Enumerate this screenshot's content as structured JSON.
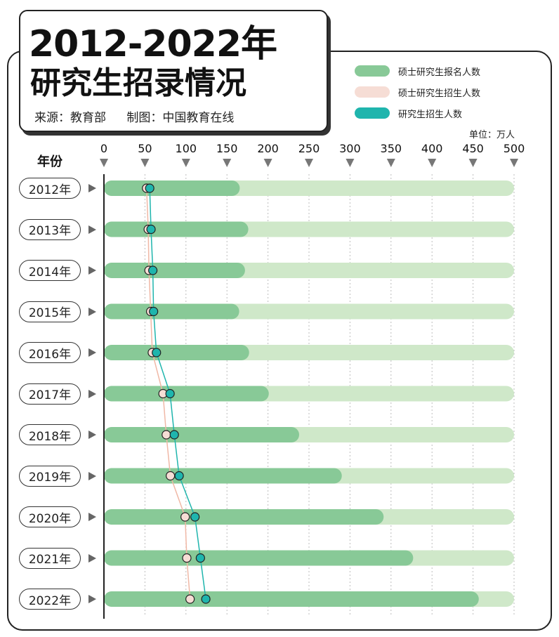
{
  "header": {
    "title_line1": "2012-2022年",
    "title_line2": "研究生招录情况",
    "source": "来源：教育部",
    "made_by": "制图：中国教育在线"
  },
  "unit_label": "单位：万人",
  "axis_title": "年份",
  "colors": {
    "registration": "#88c997",
    "registration_track": "#cfe8c9",
    "master_enrollment": "#f6ddd5",
    "total_enrollment": "#1fb5ad",
    "axis": "#222222"
  },
  "chart_data": {
    "type": "bar",
    "title": "2012-2022年研究生招录情况",
    "xlim": [
      0,
      500
    ],
    "xticks": [
      0,
      50,
      100,
      150,
      200,
      250,
      300,
      350,
      400,
      450,
      500
    ],
    "categories": [
      "2012年",
      "2013年",
      "2014年",
      "2015年",
      "2016年",
      "2017年",
      "2018年",
      "2019年",
      "2020年",
      "2021年",
      "2022年"
    ],
    "series": [
      {
        "name": "硕士研究生报名人数",
        "kind": "bar",
        "values": [
          165.6,
          176,
          172,
          164.9,
          177,
          201,
          238,
          290,
          341,
          377,
          457
        ]
      },
      {
        "name": "硕士研究生招生人数",
        "kind": "dot",
        "values": [
          52,
          54,
          54.9,
          57,
          59,
          72,
          76,
          81,
          99,
          101,
          105
        ]
      },
      {
        "name": "研究生招生人数",
        "kind": "dot",
        "values": [
          55.8,
          57.4,
          59.6,
          60.5,
          64,
          80.6,
          85.8,
          91.7,
          111,
          117.6,
          124.2
        ]
      }
    ]
  }
}
